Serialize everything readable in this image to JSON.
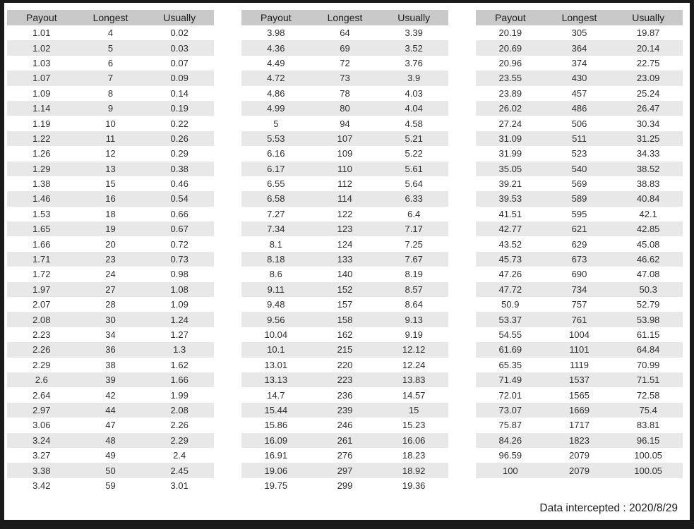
{
  "chart_data": {
    "type": "table",
    "columns": [
      "Payout",
      "Longest",
      "Usually"
    ],
    "tables": [
      {
        "name": "payout-table-1",
        "rows": [
          [
            1.01,
            4,
            0.02
          ],
          [
            1.02,
            5,
            0.03
          ],
          [
            1.03,
            6,
            0.07
          ],
          [
            1.07,
            7,
            0.09
          ],
          [
            1.09,
            8,
            0.14
          ],
          [
            1.14,
            9,
            0.19
          ],
          [
            1.19,
            10,
            0.22
          ],
          [
            1.22,
            11,
            0.26
          ],
          [
            1.26,
            12,
            0.29
          ],
          [
            1.29,
            13,
            0.38
          ],
          [
            1.38,
            15,
            0.46
          ],
          [
            1.46,
            16,
            0.54
          ],
          [
            1.53,
            18,
            0.66
          ],
          [
            1.65,
            19,
            0.67
          ],
          [
            1.66,
            20,
            0.72
          ],
          [
            1.71,
            23,
            0.73
          ],
          [
            1.72,
            24,
            0.98
          ],
          [
            1.97,
            27,
            1.08
          ],
          [
            2.07,
            28,
            1.09
          ],
          [
            2.08,
            30,
            1.24
          ],
          [
            2.23,
            34,
            1.27
          ],
          [
            2.26,
            36,
            1.3
          ],
          [
            2.29,
            38,
            1.62
          ],
          [
            2.6,
            39,
            1.66
          ],
          [
            2.64,
            42,
            1.99
          ],
          [
            2.97,
            44,
            2.08
          ],
          [
            3.06,
            47,
            2.26
          ],
          [
            3.24,
            48,
            2.29
          ],
          [
            3.27,
            49,
            2.4
          ],
          [
            3.38,
            50,
            2.45
          ],
          [
            3.42,
            59,
            3.01
          ]
        ]
      },
      {
        "name": "payout-table-2",
        "rows": [
          [
            3.98,
            64,
            3.39
          ],
          [
            4.36,
            69,
            3.52
          ],
          [
            4.49,
            72,
            3.76
          ],
          [
            4.72,
            73,
            3.9
          ],
          [
            4.86,
            78,
            4.03
          ],
          [
            4.99,
            80,
            4.04
          ],
          [
            5,
            94,
            4.58
          ],
          [
            5.53,
            107,
            5.21
          ],
          [
            6.16,
            109,
            5.22
          ],
          [
            6.17,
            110,
            5.61
          ],
          [
            6.55,
            112,
            5.64
          ],
          [
            6.58,
            114,
            6.33
          ],
          [
            7.27,
            122,
            6.4
          ],
          [
            7.34,
            123,
            7.17
          ],
          [
            8.1,
            124,
            7.25
          ],
          [
            8.18,
            133,
            7.67
          ],
          [
            8.6,
            140,
            8.19
          ],
          [
            9.11,
            152,
            8.57
          ],
          [
            9.48,
            157,
            8.64
          ],
          [
            9.56,
            158,
            9.13
          ],
          [
            10.04,
            162,
            9.19
          ],
          [
            10.1,
            215,
            12.12
          ],
          [
            13.01,
            220,
            12.24
          ],
          [
            13.13,
            223,
            13.83
          ],
          [
            14.7,
            236,
            14.57
          ],
          [
            15.44,
            239,
            15
          ],
          [
            15.86,
            246,
            15.23
          ],
          [
            16.09,
            261,
            16.06
          ],
          [
            16.91,
            276,
            18.23
          ],
          [
            19.06,
            297,
            18.92
          ],
          [
            19.75,
            299,
            19.36
          ]
        ]
      },
      {
        "name": "payout-table-3",
        "rows": [
          [
            20.19,
            305,
            19.87
          ],
          [
            20.69,
            364,
            20.14
          ],
          [
            20.96,
            374,
            22.75
          ],
          [
            23.55,
            430,
            23.09
          ],
          [
            23.89,
            457,
            25.24
          ],
          [
            26.02,
            486,
            26.47
          ],
          [
            27.24,
            506,
            30.34
          ],
          [
            31.09,
            511,
            31.25
          ],
          [
            31.99,
            523,
            34.33
          ],
          [
            35.05,
            540,
            38.52
          ],
          [
            39.21,
            569,
            38.83
          ],
          [
            39.53,
            589,
            40.84
          ],
          [
            41.51,
            595,
            42.1
          ],
          [
            42.77,
            621,
            42.85
          ],
          [
            43.52,
            629,
            45.08
          ],
          [
            45.73,
            673,
            46.62
          ],
          [
            47.26,
            690,
            47.08
          ],
          [
            47.72,
            734,
            50.3
          ],
          [
            50.9,
            757,
            52.79
          ],
          [
            53.37,
            761,
            53.98
          ],
          [
            54.55,
            1004,
            61.15
          ],
          [
            61.69,
            1101,
            64.84
          ],
          [
            65.35,
            1119,
            70.99
          ],
          [
            71.49,
            1537,
            71.51
          ],
          [
            72.01,
            1565,
            72.58
          ],
          [
            73.07,
            1669,
            75.4
          ],
          [
            75.87,
            1717,
            83.81
          ],
          [
            84.26,
            1823,
            96.15
          ],
          [
            96.59,
            2079,
            100.05
          ],
          [
            100,
            2079,
            100.05
          ]
        ]
      }
    ],
    "footer": "Data intercepted : 2020/8/29"
  },
  "colors": {
    "frame": "#1a1a1a",
    "header_bg": "#c9c9c9",
    "stripe_bg": "#e8e8e8",
    "text": "#2e2e2e"
  }
}
